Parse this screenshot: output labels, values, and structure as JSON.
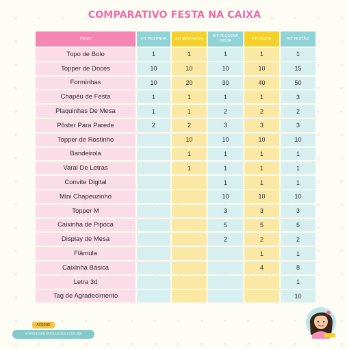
{
  "title": "COMPARATIVO FESTA NA CAIXA",
  "headers": [
    "ITENS",
    "KIT FESTINHA",
    "KIT MINI FESTA",
    "KIT PEQUENA FESTA",
    "KIT FESTA",
    "KIT FESTÃO"
  ],
  "rows": [
    [
      "Topo de Bolo",
      "1",
      "1",
      "1",
      "1",
      "1"
    ],
    [
      "Topper de Doces",
      "10",
      "10",
      "10",
      "10",
      "15"
    ],
    [
      "Forminhas",
      "10",
      "20",
      "30",
      "40",
      "50"
    ],
    [
      "Chapéu de Festa",
      "1",
      "1",
      "1",
      "1",
      "3"
    ],
    [
      "Plaquinhas De Mesa",
      "1",
      "1",
      "2",
      "2",
      "2"
    ],
    [
      "Pôster Para Parede",
      "2",
      "2",
      "3",
      "3",
      "3"
    ],
    [
      "Topper de Rostinho",
      "",
      "10",
      "10",
      "10",
      "10"
    ],
    [
      "Bandeirola",
      "",
      "1",
      "1",
      "1",
      "1"
    ],
    [
      "Varal De Letras",
      "",
      "1",
      "1",
      "1",
      "1"
    ],
    [
      "Convite Digital",
      "",
      "",
      "1",
      "1",
      "1"
    ],
    [
      "Mini Chapeuzinho",
      "",
      "",
      "10",
      "10",
      "10"
    ],
    [
      "Topper M",
      "",
      "",
      "3",
      "3",
      "3"
    ],
    [
      "Caixinha de Pipoca",
      "",
      "",
      "5",
      "5",
      "5"
    ],
    [
      "Display de Mesa",
      "",
      "",
      "2",
      "2",
      "2"
    ],
    [
      "Flâmula",
      "",
      "",
      "",
      "1",
      "1"
    ],
    [
      "Caixinha Básica",
      "",
      "",
      "",
      "4",
      "8"
    ],
    [
      "Letra 3d",
      "",
      "",
      "",
      "",
      "1"
    ],
    [
      "Tag de Agradecimento",
      "",
      "",
      "",
      "",
      "10"
    ]
  ],
  "footer": {
    "badge": "ACESSE",
    "url": "WWW.DANIPAPELEIRA.COM.BR"
  },
  "colors": {
    "title": "#f06aa6",
    "pink": "#f586b4",
    "pink_light": "#fbdde7",
    "teal": "#8fd3d7",
    "teal_light": "#d8eff0",
    "yellow": "#f4d12b",
    "yellow_light": "#fbe8a4"
  },
  "icons": {
    "mascot": "girl-with-dark-hair-avatar-icon"
  }
}
